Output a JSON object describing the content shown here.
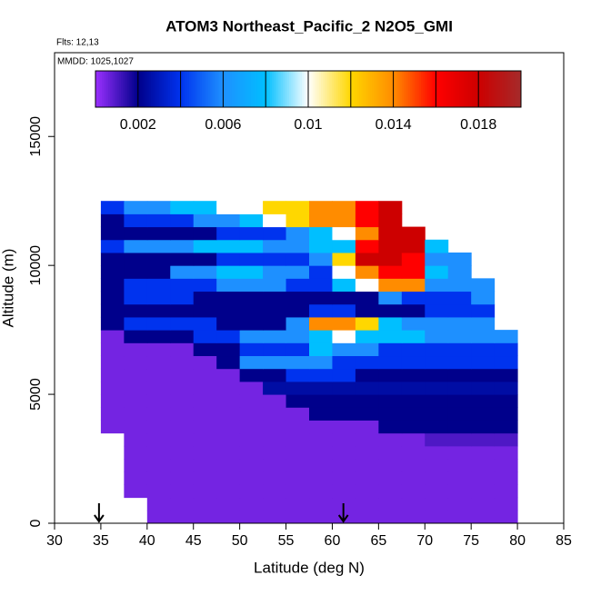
{
  "chart_data": {
    "type": "heatmap",
    "title": "ATOM3 Northeast_Pacific_2 N2O5_GMI",
    "annotations": [
      "Flts: 12,13",
      "MMDD: 1025,1027"
    ],
    "xlabel": "Latitude (deg N)",
    "ylabel": "Altitude (m)",
    "xlim": [
      30,
      85
    ],
    "xticks": [
      30,
      35,
      40,
      45,
      50,
      55,
      60,
      65,
      70,
      75,
      80,
      85
    ],
    "ylim": [
      0,
      18250
    ],
    "yticks": [
      0,
      5000,
      10000,
      15000
    ],
    "x_edges": [
      35,
      37.5,
      40,
      42.5,
      45,
      47.5,
      50,
      52.5,
      55,
      57.5,
      60,
      62.5,
      65,
      67.5,
      70,
      72.5,
      75,
      77.5,
      80
    ],
    "y_edges": [
      0,
      500,
      1000,
      1500,
      2000,
      2500,
      3000,
      3500,
      4000,
      4500,
      5000,
      5500,
      6000,
      6500,
      7000,
      7500,
      8000,
      8500,
      9000,
      9500,
      10000,
      10500,
      11000,
      11500,
      12000,
      12500
    ],
    "z": [
      [
        null,
        null,
        0.0005,
        0.0005,
        0.0005,
        0.0005,
        0.0005,
        0.0005,
        0.0005,
        0.0005,
        0.0005,
        0.0005,
        0.0005,
        0.0005,
        0.0005,
        0.0005,
        0.0005,
        0.0005
      ],
      [
        null,
        null,
        0.0005,
        0.0005,
        0.0005,
        0.0005,
        0.0005,
        0.0005,
        0.0005,
        0.0005,
        0.0005,
        0.0005,
        0.0005,
        0.0005,
        0.0005,
        0.0005,
        0.0005,
        0.0005
      ],
      [
        null,
        0.0005,
        0.0005,
        0.0005,
        0.0005,
        0.0005,
        0.0005,
        0.0005,
        0.0005,
        0.0005,
        0.0005,
        0.0005,
        0.0005,
        0.0005,
        0.0005,
        0.0005,
        0.0005,
        0.0005
      ],
      [
        null,
        0.0005,
        0.0005,
        0.0005,
        0.0005,
        0.0005,
        0.0005,
        0.0005,
        0.0005,
        0.0005,
        0.0005,
        0.0005,
        0.0005,
        0.0005,
        0.0005,
        0.0005,
        0.0005,
        0.0005
      ],
      [
        null,
        0.0005,
        0.0005,
        0.0005,
        0.0005,
        0.0005,
        0.0005,
        0.0005,
        0.0005,
        0.0005,
        0.0005,
        0.0005,
        0.0005,
        0.0005,
        0.0005,
        0.0005,
        0.0005,
        0.0005
      ],
      [
        null,
        0.0005,
        0.0005,
        0.0005,
        0.0005,
        0.0005,
        0.0005,
        0.0005,
        0.0005,
        0.0005,
        0.0005,
        0.0005,
        0.0005,
        0.0005,
        0.0005,
        0.0005,
        0.0005,
        0.0005
      ],
      [
        null,
        0.0005,
        0.0005,
        0.0005,
        0.0005,
        0.0005,
        0.0005,
        0.0005,
        0.0005,
        0.0005,
        0.0005,
        0.0005,
        0.0005,
        0.0005,
        0.001,
        0.001,
        0.001,
        0.001
      ],
      [
        0.0005,
        0.0005,
        0.0005,
        0.0005,
        0.0005,
        0.0005,
        0.0005,
        0.0005,
        0.0005,
        0.0005,
        0.0005,
        0.0005,
        0.002,
        0.002,
        0.002,
        0.002,
        0.002,
        0.002
      ],
      [
        0.0005,
        0.0005,
        0.0005,
        0.0005,
        0.0005,
        0.0005,
        0.0005,
        0.0005,
        0.0005,
        0.002,
        0.002,
        0.002,
        0.002,
        0.002,
        0.002,
        0.002,
        0.002,
        0.002
      ],
      [
        0.0005,
        0.0005,
        0.0005,
        0.0005,
        0.0005,
        0.0005,
        0.0005,
        0.0005,
        0.002,
        0.002,
        0.002,
        0.002,
        0.002,
        0.002,
        0.002,
        0.002,
        0.002,
        0.002
      ],
      [
        0.0005,
        0.0005,
        0.0005,
        0.0005,
        0.0005,
        0.0005,
        0.0005,
        0.0025,
        0.0025,
        0.0025,
        0.0025,
        0.0025,
        0.0025,
        0.0025,
        0.0025,
        0.0025,
        0.0025,
        0.0025
      ],
      [
        0.0005,
        0.0005,
        0.0005,
        0.0005,
        0.0005,
        0.0005,
        0.002,
        0.002,
        0.004,
        0.004,
        0.004,
        0.002,
        0.002,
        0.002,
        0.002,
        0.002,
        0.002,
        0.002
      ],
      [
        0.0005,
        0.0005,
        0.0005,
        0.0005,
        0.0005,
        0.002,
        0.006,
        0.006,
        0.006,
        0.006,
        0.004,
        0.004,
        0.004,
        0.004,
        0.004,
        0.004,
        0.004,
        0.004
      ],
      [
        0.0005,
        0.0005,
        0.0005,
        0.0005,
        0.002,
        0.002,
        0.004,
        0.004,
        0.004,
        0.008,
        0.006,
        0.006,
        0.004,
        0.004,
        0.004,
        0.004,
        0.004,
        0.004
      ],
      [
        0.0005,
        0.002,
        0.002,
        0.002,
        0.004,
        0.004,
        0.006,
        0.006,
        0.006,
        0.008,
        0.01,
        0.008,
        0.008,
        0.008,
        0.006,
        0.006,
        0.006,
        0.006
      ],
      [
        0.002,
        0.004,
        0.004,
        0.004,
        0.004,
        0.002,
        0.002,
        0.002,
        0.006,
        0.014,
        0.014,
        0.012,
        0.008,
        0.006,
        0.006,
        0.006,
        0.006,
        null
      ],
      [
        0.002,
        0.002,
        0.002,
        0.002,
        0.002,
        0.002,
        0.002,
        0.002,
        0.002,
        0.004,
        0.004,
        0.002,
        0.002,
        0.002,
        0.004,
        0.004,
        0.004,
        null
      ],
      [
        0.002,
        0.004,
        0.004,
        0.004,
        0.002,
        0.002,
        0.002,
        0.002,
        0.002,
        0.002,
        0.002,
        0.002,
        0.006,
        0.004,
        0.004,
        0.004,
        0.006,
        null
      ],
      [
        0.002,
        0.004,
        0.004,
        0.004,
        0.004,
        0.006,
        0.006,
        0.006,
        0.004,
        0.004,
        0.008,
        0.01,
        0.014,
        0.014,
        0.006,
        0.006,
        0.006,
        null
      ],
      [
        0.002,
        0.002,
        0.002,
        0.006,
        0.006,
        0.008,
        0.008,
        0.006,
        0.006,
        0.004,
        0.01,
        0.014,
        0.016,
        0.016,
        0.008,
        0.006,
        null,
        null
      ],
      [
        0.002,
        0.002,
        0.002,
        0.002,
        0.002,
        0.004,
        0.004,
        0.004,
        0.004,
        0.006,
        0.012,
        0.018,
        0.018,
        0.016,
        0.006,
        0.006,
        null,
        null
      ],
      [
        0.004,
        0.006,
        0.006,
        0.006,
        0.008,
        0.008,
        0.008,
        0.006,
        0.006,
        0.008,
        0.008,
        0.016,
        0.018,
        0.018,
        0.008,
        null,
        null,
        null
      ],
      [
        0.002,
        0.002,
        0.002,
        0.002,
        0.002,
        0.004,
        0.004,
        0.004,
        0.006,
        0.008,
        0.01,
        0.014,
        0.018,
        0.018,
        null,
        null,
        null,
        null
      ],
      [
        0.002,
        0.004,
        0.004,
        0.004,
        0.006,
        0.006,
        0.008,
        0.01,
        0.012,
        0.014,
        0.014,
        0.016,
        0.018,
        null,
        null,
        null,
        null,
        null
      ],
      [
        0.004,
        0.006,
        0.006,
        0.008,
        0.008,
        0.01,
        0.01,
        0.012,
        0.012,
        0.014,
        0.014,
        0.016,
        0.018,
        null,
        null,
        null,
        null,
        null
      ]
    ],
    "colorbar": {
      "lim": [
        0,
        0.02
      ],
      "ticks": [
        0.002,
        0.006,
        0.01,
        0.014,
        0.018
      ],
      "breaks": [
        0.002,
        0.004,
        0.006,
        0.008,
        0.01,
        0.012,
        0.014,
        0.016,
        0.018
      ]
    },
    "colormap": [
      {
        "value": 0,
        "color": "#9b30ff"
      },
      {
        "value": 0.002,
        "color": "#00008b"
      },
      {
        "value": 0.004,
        "color": "#0033ee"
      },
      {
        "value": 0.006,
        "color": "#1e90ff"
      },
      {
        "value": 0.008,
        "color": "#00bfff"
      },
      {
        "value": 0.01,
        "color": "#ffffff"
      },
      {
        "value": 0.012,
        "color": "#ffd700"
      },
      {
        "value": 0.014,
        "color": "#ff8c00"
      },
      {
        "value": 0.016,
        "color": "#ff0000"
      },
      {
        "value": 0.018,
        "color": "#cd0000"
      },
      {
        "value": 0.02,
        "color": "#a52a2a"
      }
    ],
    "arrows_x": [
      34.8,
      61.2
    ]
  }
}
